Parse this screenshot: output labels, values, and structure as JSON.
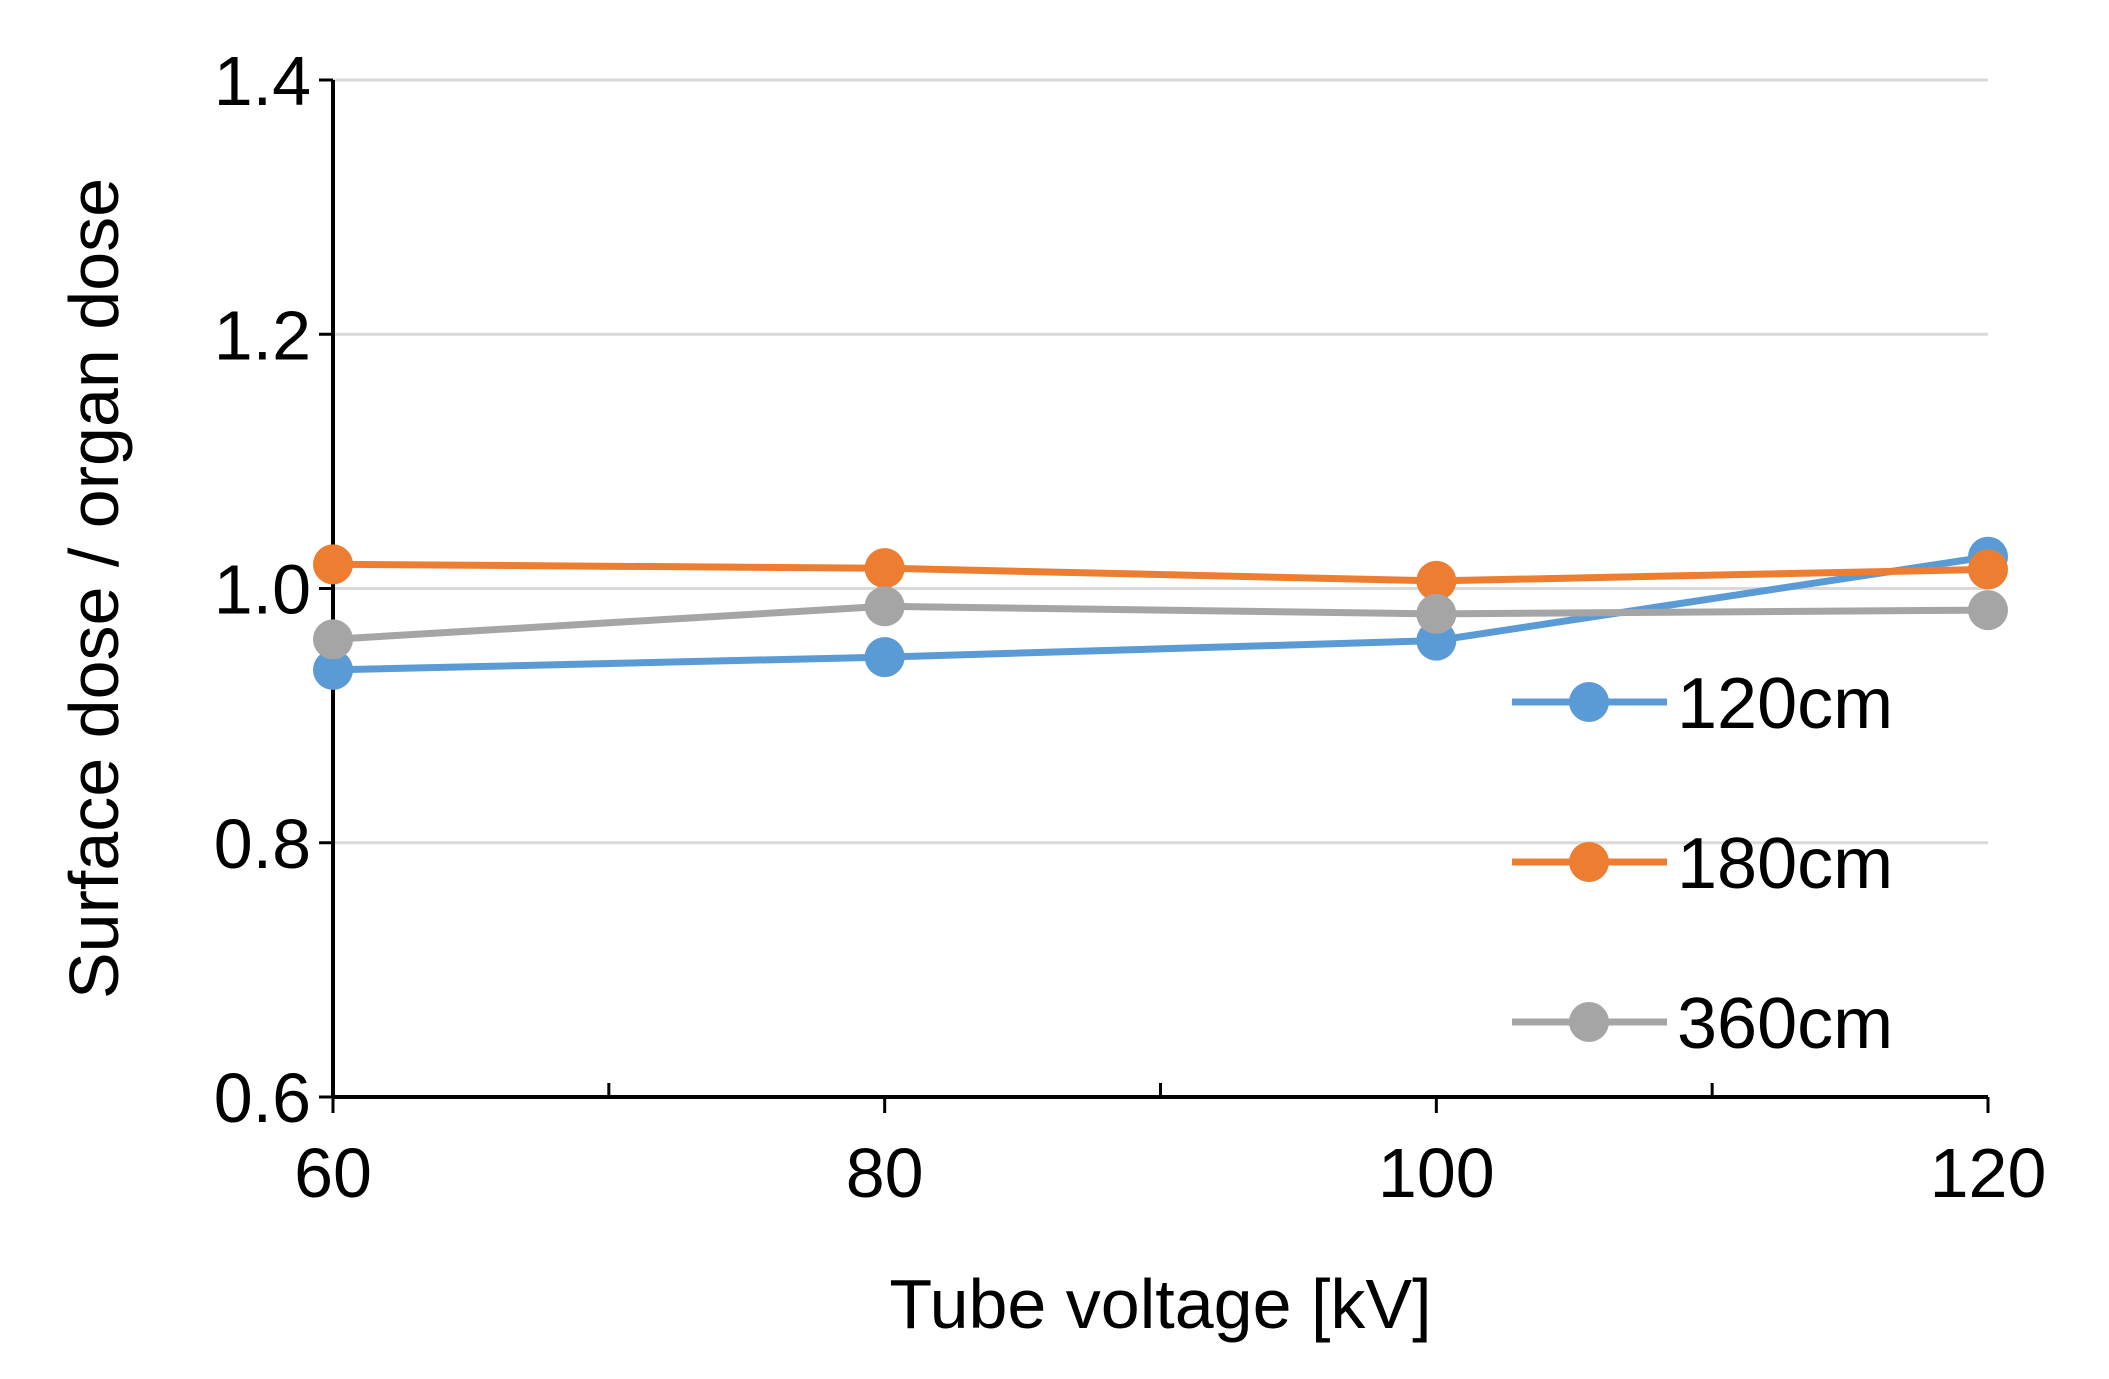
{
  "chart_data": {
    "type": "line",
    "title": "",
    "xlabel": "Tube voltage [kV]",
    "ylabel": "Surface dose / organ dose",
    "x": [
      60,
      80,
      100,
      120
    ],
    "x_ticks": [
      "60",
      "80",
      "100",
      "120"
    ],
    "x_minor_ticks": [
      70,
      90,
      110
    ],
    "xlim": [
      60,
      120
    ],
    "y_ticks": [
      "0.6",
      "0.8",
      "1.0",
      "1.2",
      "1.4"
    ],
    "ylim": [
      0.6,
      1.4
    ],
    "grid": "horizontal",
    "legend_position": "right",
    "series": [
      {
        "name": "120cm",
        "color": "#5b9bd5",
        "values": [
          0.936,
          0.946,
          0.959,
          1.025
        ]
      },
      {
        "name": "180cm",
        "color": "#ed7d31",
        "values": [
          1.019,
          1.016,
          1.006,
          1.015
        ]
      },
      {
        "name": "360cm",
        "color": "#a5a5a5",
        "values": [
          0.96,
          0.986,
          0.98,
          0.983
        ]
      }
    ]
  }
}
